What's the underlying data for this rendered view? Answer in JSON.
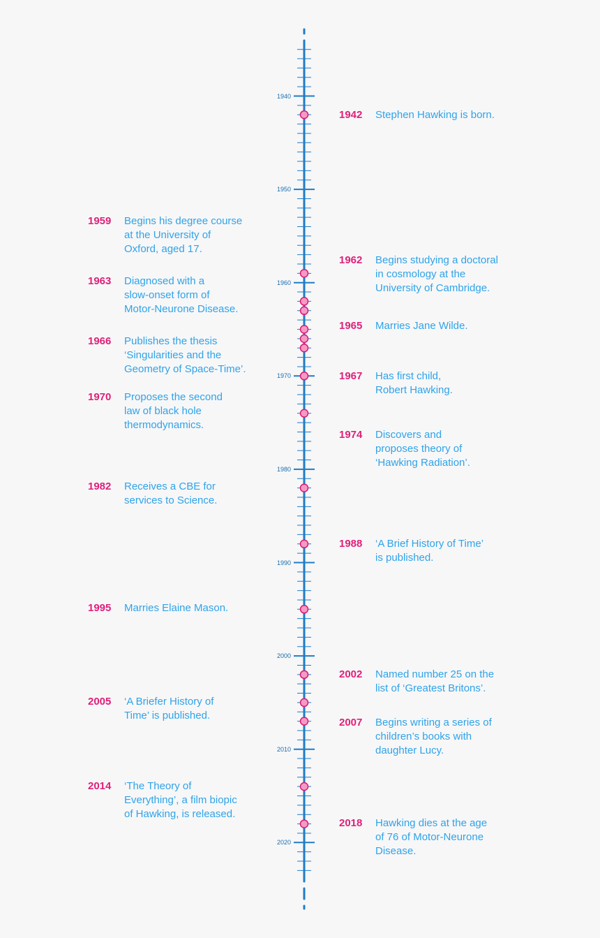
{
  "colors": {
    "axis": "#1f7cc6",
    "marker_fill": "#f59ac4",
    "marker_stroke": "#d91a74",
    "year_text": "#e0207a",
    "event_text": "#2fa3e8"
  },
  "axis": {
    "start_year": 1935,
    "end_year": 2023,
    "labels": [
      "1940",
      "1950",
      "1960",
      "1970",
      "1980",
      "1990",
      "2000",
      "2010",
      "2020"
    ]
  },
  "markers": [
    1942,
    1959,
    1962,
    1963,
    1965,
    1966,
    1967,
    1970,
    1974,
    1982,
    1988,
    1995,
    2002,
    2005,
    2007,
    2014,
    2018
  ],
  "events_left": [
    {
      "year": "1959",
      "text": "Begins his degree course\nat the University of\nOxford, aged 17."
    },
    {
      "year": "1963",
      "text": "Diagnosed with a\nslow-onset form of\nMotor-Neurone Disease."
    },
    {
      "year": "1966",
      "text": "Publishes the thesis\n‘Singularities and the\nGeometry of Space-Time’."
    },
    {
      "year": "1970",
      "text": "Proposes the second\nlaw of black hole\nthermodynamics."
    },
    {
      "year": "1982",
      "text": "Receives a CBE for\nservices to Science."
    },
    {
      "year": "1995",
      "text": "Marries Elaine Mason."
    },
    {
      "year": "2005",
      "text": "‘A Briefer History of\nTime’ is published."
    },
    {
      "year": "2014",
      "text": "‘The Theory of\nEverything’, a film biopic\nof Hawking, is released."
    }
  ],
  "events_right": [
    {
      "year": "1942",
      "text": "Stephen Hawking is born."
    },
    {
      "year": "1962",
      "text": "Begins studying a doctoral\nin cosmology at the\nUniversity of Cambridge."
    },
    {
      "year": "1965",
      "text": "Marries Jane Wilde."
    },
    {
      "year": "1967",
      "text": "Has first child,\nRobert Hawking."
    },
    {
      "year": "1974",
      "text": "Discovers and\nproposes theory of\n‘Hawking Radiation’."
    },
    {
      "year": "1988",
      "text": "‘A Brief History of Time’\nis published."
    },
    {
      "year": "2002",
      "text": "Named number 25 on the\nlist of ‘Greatest Britons’."
    },
    {
      "year": "2007",
      "text": "Begins writing a series of\nchildren’s books with\ndaughter Lucy."
    },
    {
      "year": "2018",
      "text": "Hawking dies at the age\nof 76 of Motor-Neurone\nDisease."
    }
  ]
}
